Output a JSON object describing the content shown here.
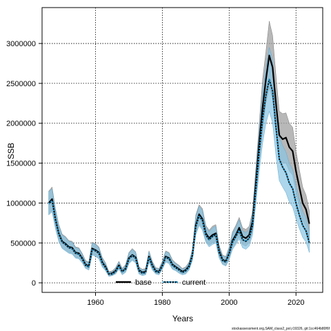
{
  "chart_data": {
    "type": "line",
    "title": "",
    "xlabel": "Years",
    "ylabel": "SSB",
    "xlim": [
      1944,
      2028
    ],
    "ylim": [
      -120000,
      3450000
    ],
    "grid": true,
    "x_ticks": [
      1960,
      1980,
      2000,
      2020
    ],
    "y_ticks": [
      0,
      500000,
      1000000,
      1500000,
      2000000,
      2500000,
      3000000
    ],
    "legend": {
      "position": "bottom-left",
      "entries": [
        "base",
        "current"
      ]
    },
    "footer": "stockassessment.org,SAM_class2_pol,r19326, git:1cc464b80f6f",
    "colors": {
      "base_line": "#000000",
      "base_band": "#a0a0a0",
      "current_line": "#111111",
      "current_dots": "#2a9fd6",
      "current_band": "#89c4e3"
    },
    "series": [
      {
        "name": "base",
        "x": [
          1946,
          1947,
          1948,
          1949,
          1950,
          1951,
          1952,
          1953,
          1954,
          1955,
          1956,
          1957,
          1958,
          1959,
          1960,
          1961,
          1962,
          1963,
          1964,
          1965,
          1966,
          1967,
          1968,
          1969,
          1970,
          1971,
          1972,
          1973,
          1974,
          1975,
          1976,
          1977,
          1978,
          1979,
          1980,
          1981,
          1982,
          1983,
          1984,
          1985,
          1986,
          1987,
          1988,
          1989,
          1990,
          1991,
          1992,
          1993,
          1994,
          1995,
          1996,
          1997,
          1998,
          1999,
          2000,
          2001,
          2002,
          2003,
          2004,
          2005,
          2006,
          2007,
          2008,
          2009,
          2010,
          2011,
          2012,
          2013,
          2014,
          2015,
          2016,
          2017,
          2018,
          2019,
          2020,
          2021,
          2022,
          2023,
          2024
        ],
        "values": [
          1000000,
          1050000,
          800000,
          620000,
          520000,
          490000,
          450000,
          440000,
          380000,
          370000,
          310000,
          230000,
          210000,
          430000,
          410000,
          380000,
          260000,
          200000,
          110000,
          120000,
          150000,
          220000,
          140000,
          180000,
          310000,
          350000,
          320000,
          160000,
          130000,
          140000,
          330000,
          220000,
          150000,
          140000,
          220000,
          330000,
          310000,
          230000,
          200000,
          170000,
          140000,
          160000,
          210000,
          350000,
          720000,
          860000,
          800000,
          620000,
          560000,
          600000,
          620000,
          400000,
          290000,
          270000,
          370000,
          530000,
          600000,
          690000,
          580000,
          560000,
          600000,
          770000,
          1250000,
          1750000,
          2200000,
          2550000,
          2850000,
          2700000,
          2250000,
          1850000,
          1800000,
          1820000,
          1700000,
          1650000,
          1400000,
          1200000,
          1000000,
          920000,
          740000
        ],
        "lower": [
          860000,
          910000,
          690000,
          530000,
          440000,
          410000,
          380000,
          370000,
          320000,
          310000,
          260000,
          190000,
          170000,
          360000,
          340000,
          310000,
          210000,
          160000,
          90000,
          90000,
          120000,
          180000,
          110000,
          140000,
          250000,
          290000,
          260000,
          120000,
          100000,
          110000,
          270000,
          170000,
          120000,
          110000,
          180000,
          270000,
          250000,
          180000,
          160000,
          130000,
          110000,
          120000,
          170000,
          290000,
          620000,
          740000,
          680000,
          530000,
          470000,
          500000,
          520000,
          330000,
          240000,
          220000,
          300000,
          440000,
          500000,
          580000,
          480000,
          460000,
          500000,
          650000,
          1070000,
          1500000,
          1900000,
          2250000,
          2450000,
          2300000,
          1900000,
          1550000,
          1500000,
          1500000,
          1400000,
          1350000,
          1130000,
          950000,
          780000,
          700000,
          540000
        ],
        "upper": [
          1150000,
          1200000,
          930000,
          730000,
          610000,
          580000,
          530000,
          520000,
          450000,
          440000,
          370000,
          280000,
          260000,
          510000,
          490000,
          450000,
          320000,
          250000,
          140000,
          150000,
          190000,
          270000,
          180000,
          230000,
          380000,
          430000,
          390000,
          200000,
          170000,
          180000,
          400000,
          270000,
          190000,
          180000,
          270000,
          400000,
          380000,
          290000,
          250000,
          220000,
          180000,
          200000,
          260000,
          420000,
          850000,
          980000,
          930000,
          720000,
          660000,
          710000,
          730000,
          470000,
          350000,
          330000,
          450000,
          640000,
          720000,
          820000,
          690000,
          670000,
          710000,
          900000,
          1450000,
          2000000,
          2550000,
          2900000,
          3280000,
          3100000,
          2600000,
          2150000,
          2120000,
          2130000,
          2000000,
          1950000,
          1650000,
          1420000,
          1200000,
          1100000,
          900000
        ]
      },
      {
        "name": "current",
        "x": [
          1946,
          1947,
          1948,
          1949,
          1950,
          1951,
          1952,
          1953,
          1954,
          1955,
          1956,
          1957,
          1958,
          1959,
          1960,
          1961,
          1962,
          1963,
          1964,
          1965,
          1966,
          1967,
          1968,
          1969,
          1970,
          1971,
          1972,
          1973,
          1974,
          1975,
          1976,
          1977,
          1978,
          1979,
          1980,
          1981,
          1982,
          1983,
          1984,
          1985,
          1986,
          1987,
          1988,
          1989,
          1990,
          1991,
          1992,
          1993,
          1994,
          1995,
          1996,
          1997,
          1998,
          1999,
          2000,
          2001,
          2002,
          2003,
          2004,
          2005,
          2006,
          2007,
          2008,
          2009,
          2010,
          2011,
          2012,
          2013,
          2014,
          2015,
          2016,
          2017,
          2018,
          2019,
          2020,
          2021,
          2022,
          2023,
          2024
        ],
        "values": [
          990000,
          1030000,
          790000,
          610000,
          510000,
          480000,
          440000,
          430000,
          370000,
          360000,
          300000,
          220000,
          200000,
          420000,
          400000,
          370000,
          250000,
          190000,
          110000,
          110000,
          140000,
          210000,
          140000,
          170000,
          300000,
          340000,
          310000,
          150000,
          120000,
          130000,
          320000,
          210000,
          140000,
          130000,
          210000,
          320000,
          300000,
          220000,
          190000,
          160000,
          130000,
          150000,
          200000,
          340000,
          700000,
          840000,
          780000,
          600000,
          540000,
          580000,
          600000,
          380000,
          280000,
          260000,
          360000,
          510000,
          580000,
          660000,
          540000,
          520000,
          560000,
          720000,
          1180000,
          1650000,
          2050000,
          2350000,
          2550000,
          2400000,
          1950000,
          1550000,
          1450000,
          1380000,
          1250000,
          1180000,
          1000000,
          850000,
          720000,
          650000,
          500000
        ],
        "lower": [
          850000,
          890000,
          680000,
          520000,
          430000,
          400000,
          370000,
          360000,
          310000,
          300000,
          250000,
          180000,
          160000,
          350000,
          330000,
          300000,
          200000,
          150000,
          80000,
          90000,
          110000,
          170000,
          100000,
          130000,
          240000,
          280000,
          250000,
          110000,
          90000,
          100000,
          260000,
          160000,
          110000,
          100000,
          170000,
          260000,
          240000,
          170000,
          150000,
          120000,
          100000,
          110000,
          160000,
          280000,
          600000,
          720000,
          660000,
          510000,
          450000,
          480000,
          500000,
          310000,
          230000,
          210000,
          290000,
          420000,
          480000,
          550000,
          440000,
          420000,
          460000,
          600000,
          1000000,
          1400000,
          1750000,
          2000000,
          2150000,
          2000000,
          1600000,
          1280000,
          1200000,
          1130000,
          1010000,
          950000,
          800000,
          680000,
          570000,
          510000,
          380000
        ],
        "upper": [
          1140000,
          1180000,
          920000,
          720000,
          600000,
          570000,
          520000,
          510000,
          440000,
          430000,
          360000,
          270000,
          250000,
          500000,
          480000,
          440000,
          310000,
          240000,
          130000,
          140000,
          180000,
          260000,
          170000,
          220000,
          370000,
          420000,
          380000,
          190000,
          160000,
          170000,
          390000,
          260000,
          180000,
          170000,
          260000,
          390000,
          370000,
          280000,
          240000,
          210000,
          170000,
          190000,
          250000,
          410000,
          830000,
          960000,
          910000,
          700000,
          640000,
          690000,
          710000,
          450000,
          340000,
          320000,
          440000,
          620000,
          700000,
          790000,
          650000,
          630000,
          670000,
          860000,
          1380000,
          1900000,
          2400000,
          2700000,
          2950000,
          2800000,
          2300000,
          1830000,
          1720000,
          1640000,
          1500000,
          1420000,
          1220000,
          1050000,
          890000,
          820000,
          650000
        ]
      }
    ]
  }
}
